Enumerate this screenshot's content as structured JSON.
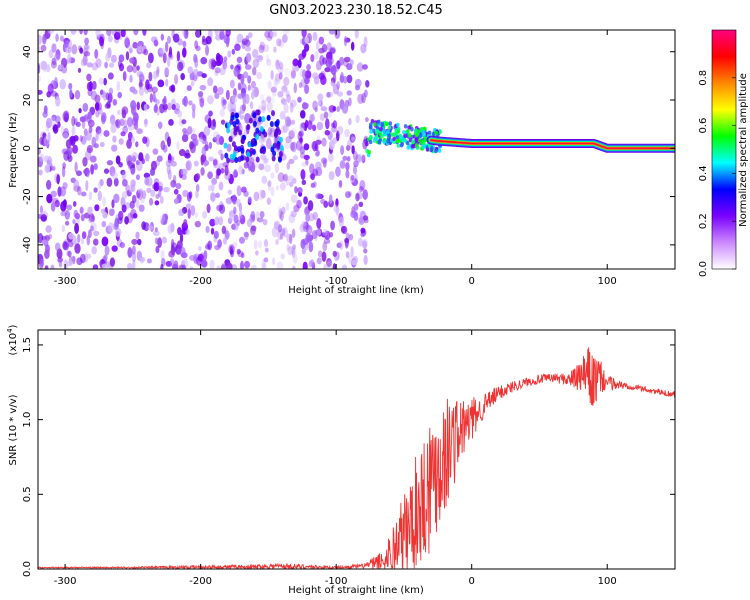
{
  "title": "GN03.2023.230.18.52.C45",
  "chart_data": [
    {
      "type": "heatmap",
      "xlabel": "Height of straight line (km)",
      "ylabel": "Frequency (Hz)",
      "xlim": [
        -320,
        150
      ],
      "ylim": [
        -50,
        49
      ],
      "xticks": [
        -300,
        -200,
        -100,
        0,
        100
      ],
      "yticks": [
        -40,
        -20,
        0,
        20,
        40
      ],
      "colorbar": {
        "label": "Normalized spectral amplitude",
        "range": [
          0,
          1
        ],
        "ticks": [
          "0.0",
          "0.2",
          "0.4",
          "0.6",
          "0.8"
        ],
        "colors": [
          "#ffffff",
          "#cc88ff",
          "#7a00ff",
          "#0000ff",
          "#00ffff",
          "#00ff00",
          "#ffff00",
          "#ff8800",
          "#ff0000",
          "#ff0080"
        ]
      },
      "features": {
        "broadband_noise_region": [
          -320,
          -77
        ],
        "enhanced_cluster": {
          "x": [
            -185,
            -140
          ],
          "y": [
            -5,
            15
          ]
        },
        "tone_track": [
          {
            "x": -75,
            "y": 7
          },
          {
            "x": -50,
            "y": 5
          },
          {
            "x": -25,
            "y": 3
          },
          {
            "x": 0,
            "y": 2
          },
          {
            "x": 50,
            "y": 2
          },
          {
            "x": 90,
            "y": 2
          },
          {
            "x": 100,
            "y": 0
          },
          {
            "x": 150,
            "y": 0
          }
        ]
      }
    },
    {
      "type": "line",
      "xlabel": "Height of straight line (km)",
      "ylabel": "SNR (10 * v/v)",
      "multiplier": "(x10",
      "multiplier_exp": "4",
      "multiplier_close": ")",
      "xlim": [
        -320,
        150
      ],
      "ylim": [
        0,
        1.6
      ],
      "xticks": [
        -300,
        -200,
        -100,
        0,
        100
      ],
      "yticks": [
        "0.0",
        "0.5",
        "1.0",
        "1.5"
      ],
      "color": "#ee3333",
      "series": [
        {
          "x": [
            -320,
            -250,
            -160,
            -140,
            -100,
            -80,
            -65,
            -55,
            -45,
            -35,
            -30,
            -25,
            -20,
            -15,
            -10,
            -5,
            0,
            5,
            10,
            20,
            30,
            40,
            50,
            60,
            70,
            80,
            85,
            90,
            95,
            100,
            110,
            120,
            130,
            140,
            150
          ],
          "y": [
            0.01,
            0.01,
            0.015,
            0.02,
            0.01,
            0.02,
            0.05,
            0.15,
            0.3,
            0.5,
            0.6,
            0.7,
            0.75,
            0.85,
            0.9,
            0.95,
            1.0,
            1.05,
            1.1,
            1.18,
            1.22,
            1.25,
            1.27,
            1.28,
            1.27,
            1.28,
            1.3,
            1.25,
            1.28,
            1.25,
            1.23,
            1.22,
            1.2,
            1.18,
            1.17
          ],
          "envelope_amplitude": [
            0.003,
            0.005,
            0.015,
            0.02,
            0.008,
            0.015,
            0.08,
            0.25,
            0.35,
            0.45,
            0.5,
            0.45,
            0.4,
            0.35,
            0.25,
            0.2,
            0.15,
            0.1,
            0.08,
            0.05,
            0.04,
            0.03,
            0.03,
            0.03,
            0.04,
            0.1,
            0.2,
            0.2,
            0.12,
            0.05,
            0.03,
            0.02,
            0.02,
            0.02,
            0.02
          ]
        }
      ]
    }
  ]
}
